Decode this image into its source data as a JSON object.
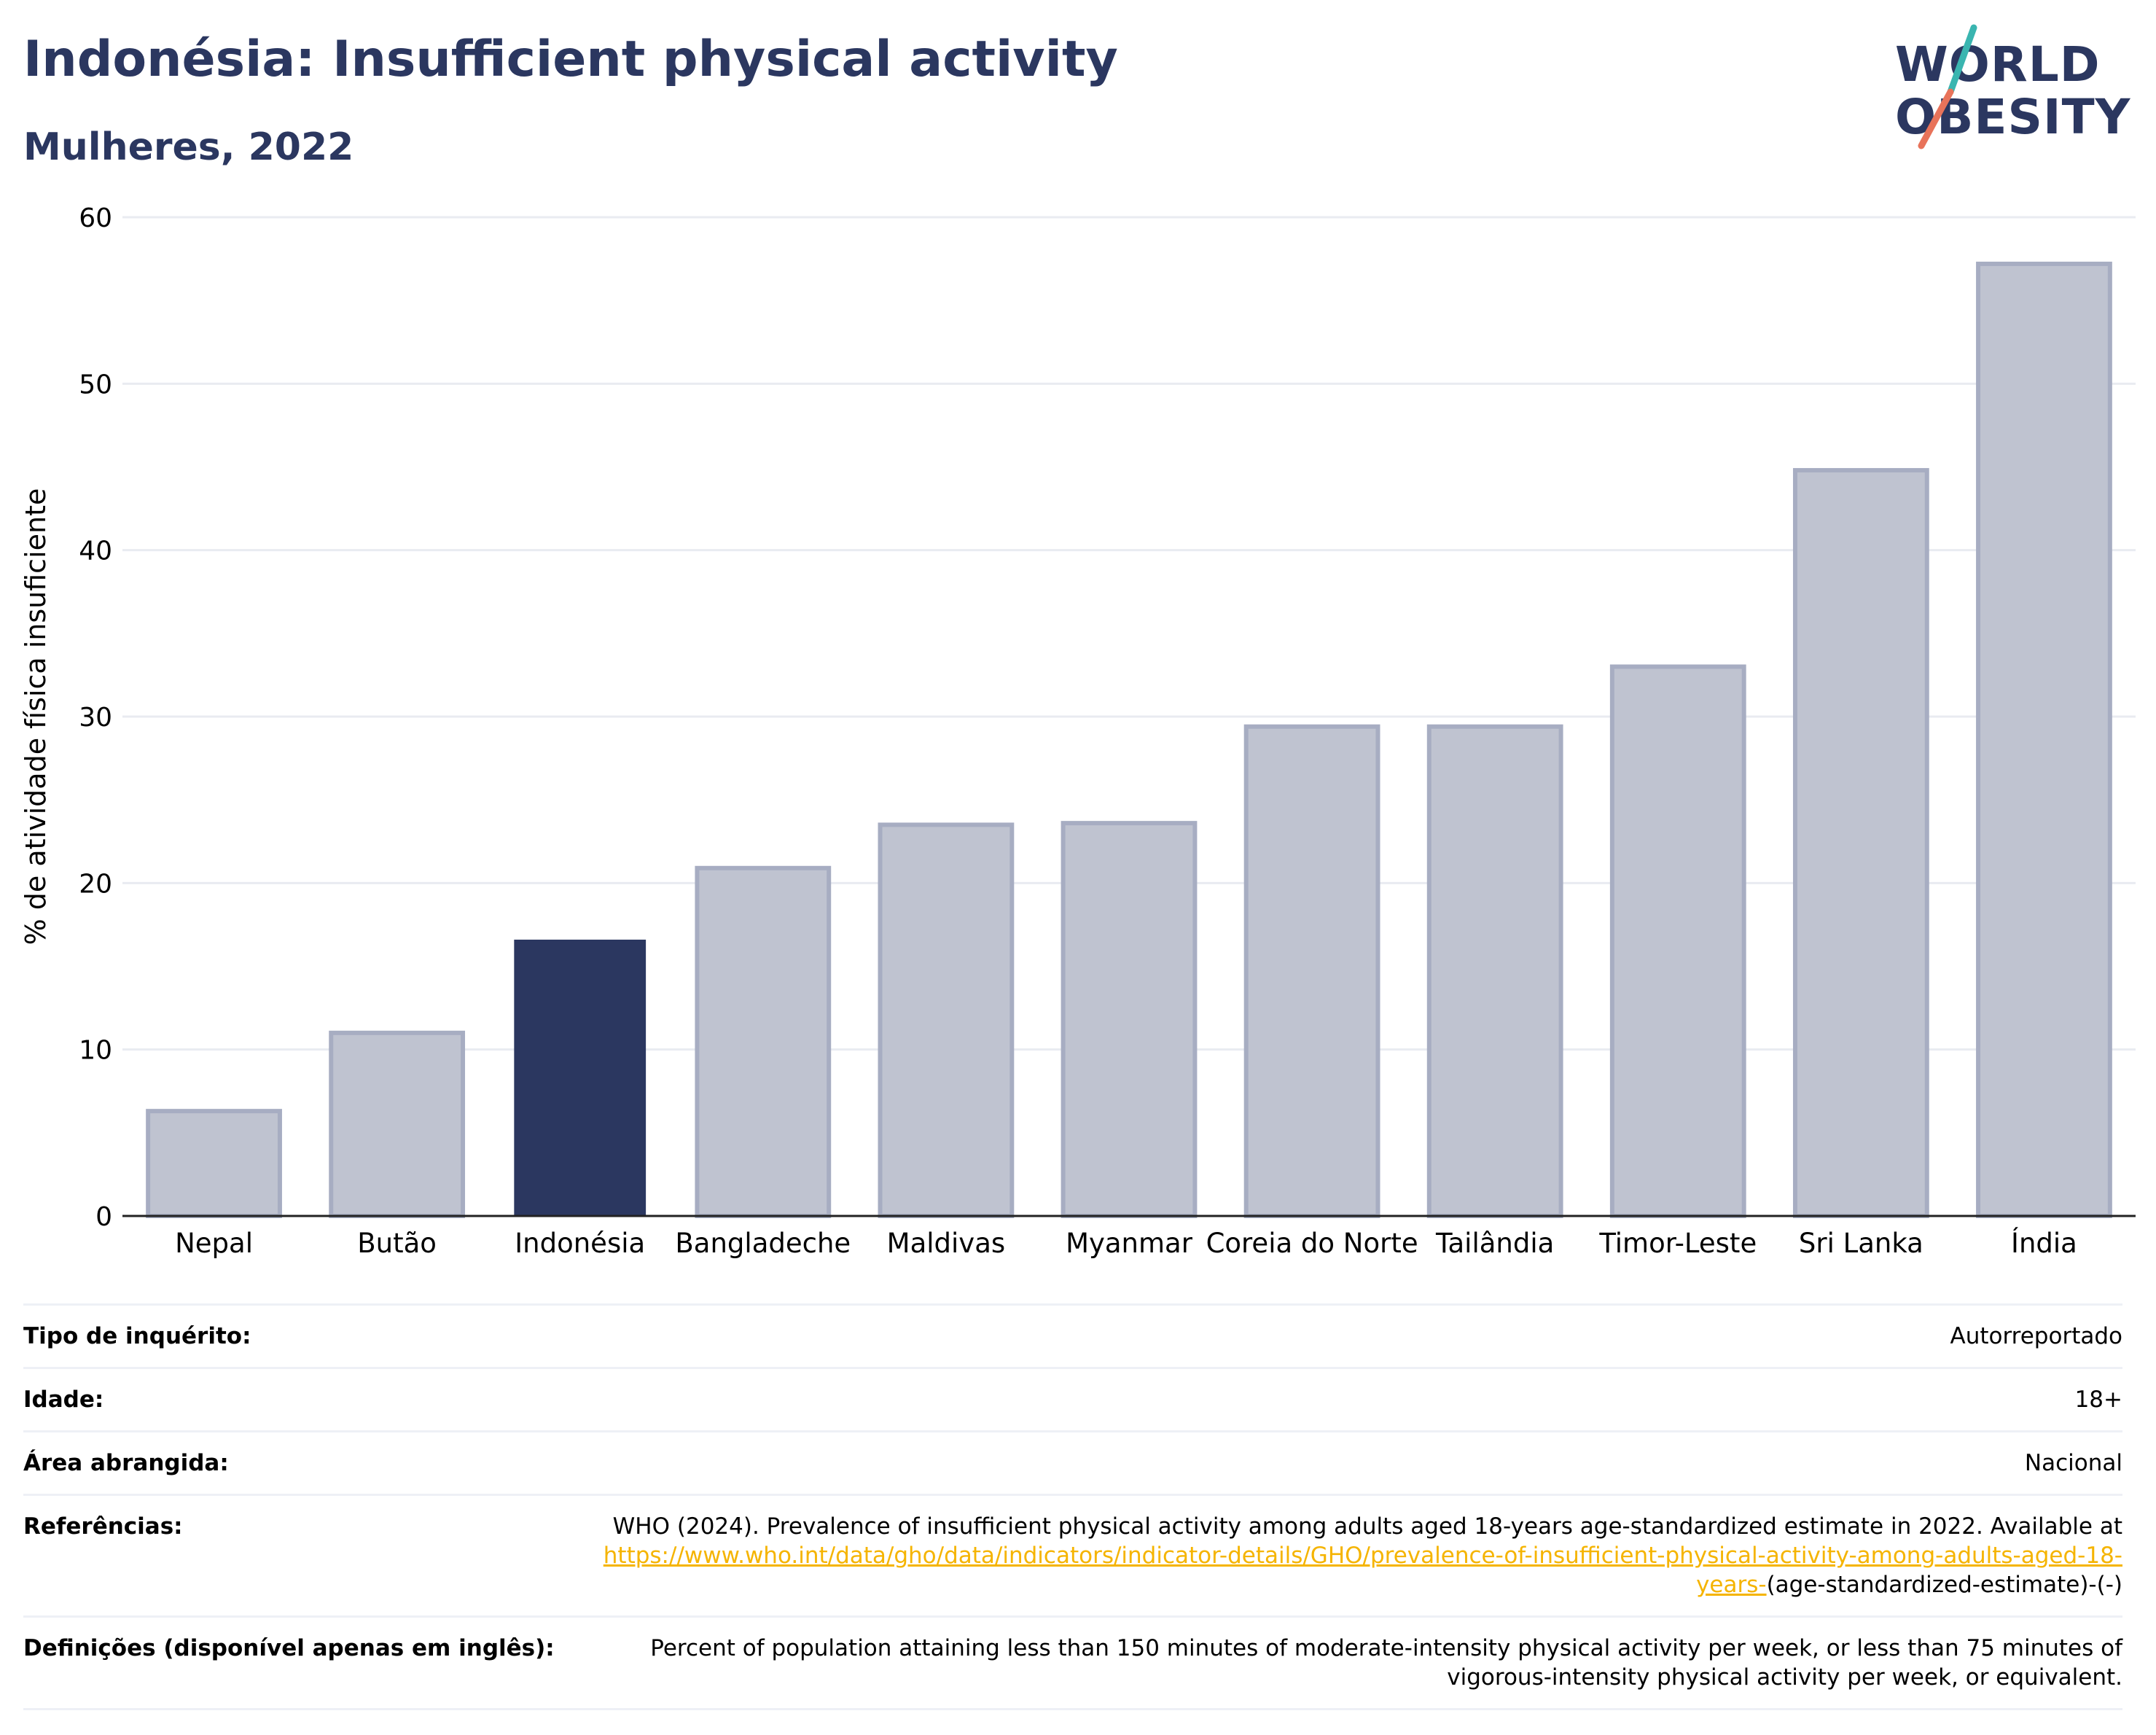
{
  "header": {
    "title": "Indonésia: Insufficient physical activity",
    "subtitle": "Mulheres, 2022"
  },
  "logo": {
    "line1": "WORLD",
    "line2": "OBESITY",
    "colors": {
      "text": "#2b3760",
      "slash_top": "#3ab5b0",
      "slash_bottom": "#e8735a"
    }
  },
  "chart_data": {
    "type": "bar",
    "categories": [
      "Nepal",
      "Butão",
      "Indonésia",
      "Bangladeche",
      "Maldivas",
      "Myanmar",
      "Coreia do Norte",
      "Tailândia",
      "Timor-Leste",
      "Sri Lanka",
      "Índia"
    ],
    "values": [
      6.3,
      11.0,
      16.6,
      20.9,
      23.5,
      23.6,
      29.4,
      29.4,
      33.0,
      44.8,
      57.2
    ],
    "highlight": "Indonésia",
    "xlabel": "",
    "ylabel": "% de atividade física insuficiente",
    "ylim": [
      0,
      60
    ],
    "yticks": [
      0,
      10,
      20,
      30,
      40,
      50,
      60
    ],
    "grid": true,
    "legend": "none",
    "colors": {
      "bar": "#bfc3d0",
      "bar_edge": "#a7adc2",
      "highlight": "#2b3760",
      "grid": "#e9ebf1",
      "axis": "#222222"
    }
  },
  "info": {
    "rows": [
      {
        "label": "Tipo de inquérito:",
        "value": "Autorreportado"
      },
      {
        "label": "Idade:",
        "value": "18+"
      },
      {
        "label": "Área abrangida:",
        "value": "Nacional"
      },
      {
        "label": "Referências:",
        "value": "WHO (2024). Prevalence of insufficient physical activity among adults aged 18-years age-standardized estimate in 2022. Available at ",
        "link": "https://www.who.int/data/gho/data/indicators/indicator-details/GHO/prevalence-of-insufficient-physical-activity-among-adults-aged-18-years-",
        "suffix": "(age-standardized-estimate)-(-)"
      },
      {
        "label": "Definições (disponível apenas em inglês):",
        "value": "Percent of population attaining less than 150 minutes of moderate-intensity physical activity per week, or less than 75 minutes of vigorous-intensity physical activity per week, or equivalent."
      }
    ]
  }
}
